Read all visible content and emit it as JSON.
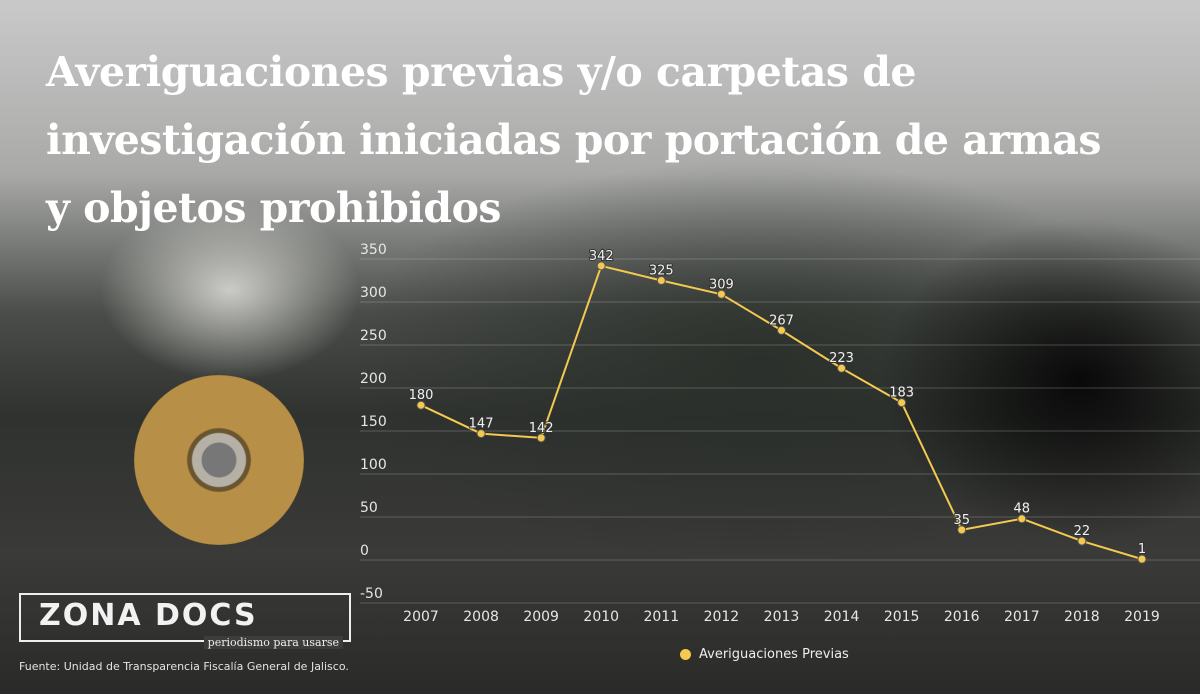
{
  "title": "Averiguaciones previas y/o carpetas de investigación iniciadas por portación de armas y objetos prohibidos",
  "logo": {
    "name": "ZONA DOCS",
    "tagline": "periodismo para usarse"
  },
  "source": "Fuente: Unidad de Transparencia Fiscalía General de Jalisco.",
  "chart_data": {
    "type": "line",
    "title": "Averiguaciones previas y/o carpetas de investigación iniciadas por portación de armas y objetos prohibidos",
    "categories": [
      "2007",
      "2008",
      "2009",
      "2010",
      "2011",
      "2012",
      "2013",
      "2014",
      "2015",
      "2016",
      "2017",
      "2018",
      "2019"
    ],
    "series": [
      {
        "name": "Averiguaciones Previas",
        "values": [
          180,
          147,
          142,
          342,
          325,
          309,
          267,
          223,
          183,
          35,
          48,
          22,
          1
        ],
        "color": "#f3c94f"
      }
    ],
    "yticks": [
      -50,
      0,
      50,
      100,
      150,
      200,
      250,
      300,
      350
    ],
    "ylim": [
      -50,
      350
    ],
    "grid": true,
    "legend": "bottom",
    "data_labels": true
  }
}
